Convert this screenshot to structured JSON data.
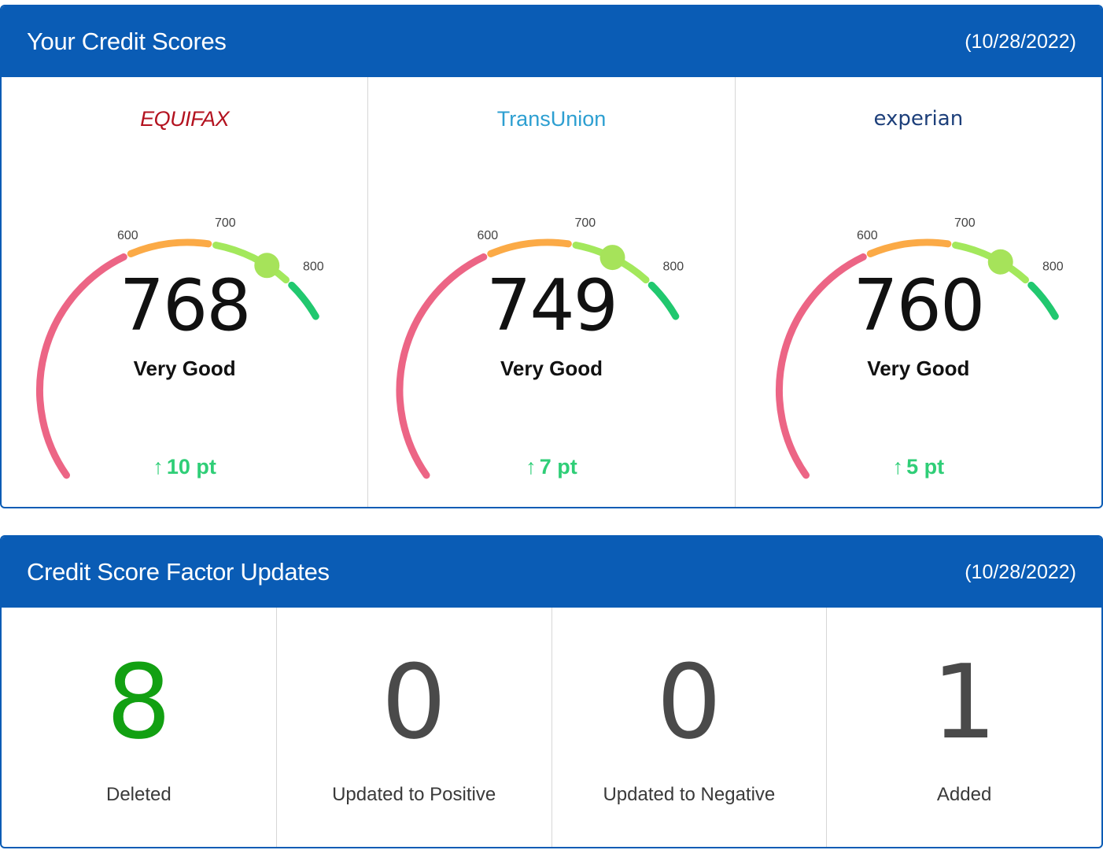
{
  "scores_panel": {
    "title": "Your Credit Scores",
    "date": "(10/28/2022)",
    "bureaus": [
      {
        "name": "EQUIFAX",
        "score": 768,
        "score_text": "768",
        "rating": "Very Good",
        "change": "10 pt",
        "change_arrow": "↑"
      },
      {
        "name": "TransUnion",
        "score": 749,
        "score_text": "749",
        "rating": "Very Good",
        "change": "7 pt",
        "change_arrow": "↑"
      },
      {
        "name": "experian",
        "score": 760,
        "score_text": "760",
        "rating": "Very Good",
        "change": "5 pt",
        "change_arrow": "↑"
      }
    ],
    "gauge": {
      "min": 300,
      "max": 850,
      "tick_labels": [
        "600",
        "700",
        "800"
      ],
      "segments": [
        {
          "from": 300,
          "to": 600,
          "color": "#ec6585"
        },
        {
          "from": 600,
          "to": 700,
          "color": "#fbaa46"
        },
        {
          "from": 700,
          "to": 800,
          "color": "#a3e85c"
        },
        {
          "from": 800,
          "to": 850,
          "color": "#21c86f"
        }
      ],
      "marker_color": "#a6e35a",
      "change_color": "#2fce77"
    }
  },
  "factors_panel": {
    "title": "Credit Score Factor Updates",
    "date": "(10/28/2022)",
    "items": [
      {
        "value": "8",
        "label": "Deleted"
      },
      {
        "value": "0",
        "label": "Updated to Positive"
      },
      {
        "value": "0",
        "label": "Updated to Negative"
      },
      {
        "value": "1",
        "label": "Added"
      }
    ]
  },
  "colors": {
    "header_blue": "#0a5cb5",
    "deleted_green": "#12a012"
  }
}
